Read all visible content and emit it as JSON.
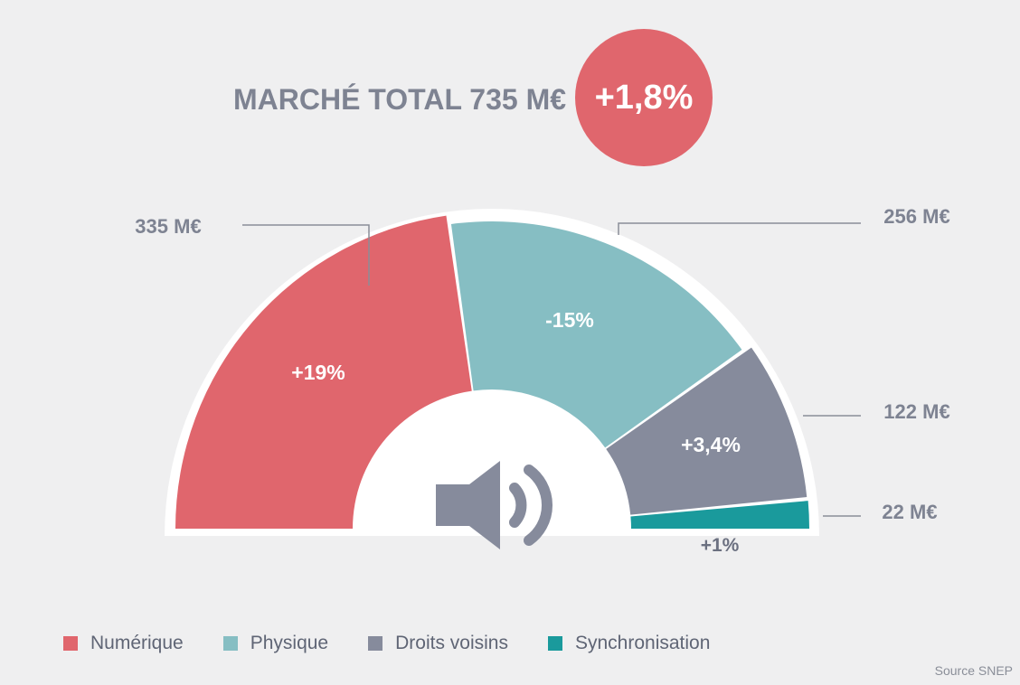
{
  "header": {
    "title": "MARCHÉ TOTAL 735 M€",
    "growth_badge": "+1,8%"
  },
  "colors": {
    "numerique": "#e0666d",
    "physique": "#86bec3",
    "droits_voisins": "#868b9c",
    "synchronisation": "#1a9a9c",
    "badge": "#e0666d",
    "title": "#7e8392",
    "leader": "#8a8e98",
    "icon": "#868b9c"
  },
  "chart_data": {
    "type": "pie",
    "variant": "half-donut",
    "title": "MARCHÉ TOTAL 735 M€",
    "total": 735,
    "unit": "M€",
    "categories": [
      "Numérique",
      "Physique",
      "Droits voisins",
      "Synchronisation"
    ],
    "values": [
      335,
      256,
      122,
      22
    ],
    "value_labels": [
      "335 M€",
      "256 M€",
      "122 M€",
      "22 M€"
    ],
    "growth_labels": [
      "+19%",
      "-15%",
      "+3,4%",
      "+1%"
    ],
    "center_icon": "speaker-icon",
    "legend_position": "bottom-left"
  },
  "legend": {
    "items": [
      {
        "label": "Numérique"
      },
      {
        "label": "Physique"
      },
      {
        "label": "Droits voisins"
      },
      {
        "label": "Synchronisation"
      }
    ]
  },
  "footer": {
    "source": "Source SNEP"
  }
}
